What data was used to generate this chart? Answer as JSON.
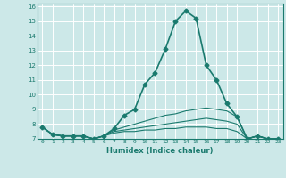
{
  "xlabel": "Humidex (Indice chaleur)",
  "ylabel": "",
  "bg_color": "#cce8e8",
  "grid_color": "#ffffff",
  "line_color": "#1a7a6e",
  "xlim": [
    -0.5,
    23.5
  ],
  "ylim": [
    7,
    16.2
  ],
  "yticks": [
    7,
    8,
    9,
    10,
    11,
    12,
    13,
    14,
    15,
    16
  ],
  "xticks": [
    0,
    1,
    2,
    3,
    4,
    5,
    6,
    7,
    8,
    9,
    10,
    11,
    12,
    13,
    14,
    15,
    16,
    17,
    18,
    19,
    20,
    21,
    22,
    23
  ],
  "series": [
    {
      "x": [
        0,
        1,
        2,
        3,
        4,
        5,
        6,
        7,
        8,
        9,
        10,
        11,
        12,
        13,
        14,
        15,
        16,
        17,
        18,
        19,
        20,
        21,
        22,
        23
      ],
      "y": [
        7.8,
        7.3,
        7.2,
        7.2,
        7.2,
        7.0,
        7.2,
        7.7,
        8.6,
        9.0,
        10.7,
        11.5,
        13.1,
        15.0,
        15.7,
        15.2,
        12.0,
        11.0,
        9.4,
        8.5,
        7.0,
        7.2,
        7.0,
        7.0
      ],
      "color": "#1a7a6e",
      "marker": "D",
      "markersize": 2.5,
      "linewidth": 1.2
    },
    {
      "x": [
        0,
        1,
        2,
        3,
        4,
        5,
        6,
        7,
        8,
        9,
        10,
        11,
        12,
        13,
        14,
        15,
        16,
        17,
        18,
        19,
        20,
        21,
        22,
        23
      ],
      "y": [
        7.8,
        7.3,
        7.2,
        7.2,
        7.2,
        7.0,
        7.2,
        7.6,
        7.8,
        8.0,
        8.2,
        8.4,
        8.6,
        8.7,
        8.9,
        9.0,
        9.1,
        9.0,
        8.9,
        8.5,
        7.0,
        7.2,
        7.0,
        7.0
      ],
      "color": "#1a7a6e",
      "marker": null,
      "markersize": 0,
      "linewidth": 0.8
    },
    {
      "x": [
        0,
        1,
        2,
        3,
        4,
        5,
        6,
        7,
        8,
        9,
        10,
        11,
        12,
        13,
        14,
        15,
        16,
        17,
        18,
        19,
        20,
        21,
        22,
        23
      ],
      "y": [
        7.8,
        7.3,
        7.2,
        7.2,
        7.2,
        7.0,
        7.2,
        7.5,
        7.6,
        7.7,
        7.8,
        7.9,
        8.0,
        8.1,
        8.2,
        8.3,
        8.4,
        8.3,
        8.2,
        8.0,
        7.0,
        7.2,
        7.0,
        7.0
      ],
      "color": "#1a7a6e",
      "marker": null,
      "markersize": 0,
      "linewidth": 0.8
    },
    {
      "x": [
        0,
        1,
        2,
        3,
        4,
        5,
        6,
        7,
        8,
        9,
        10,
        11,
        12,
        13,
        14,
        15,
        16,
        17,
        18,
        19,
        20,
        21,
        22,
        23
      ],
      "y": [
        7.8,
        7.3,
        7.2,
        7.2,
        7.2,
        7.0,
        7.2,
        7.4,
        7.5,
        7.5,
        7.6,
        7.6,
        7.7,
        7.7,
        7.8,
        7.8,
        7.8,
        7.7,
        7.7,
        7.5,
        7.0,
        7.2,
        7.0,
        7.0
      ],
      "color": "#1a7a6e",
      "marker": null,
      "markersize": 0,
      "linewidth": 0.8
    }
  ]
}
